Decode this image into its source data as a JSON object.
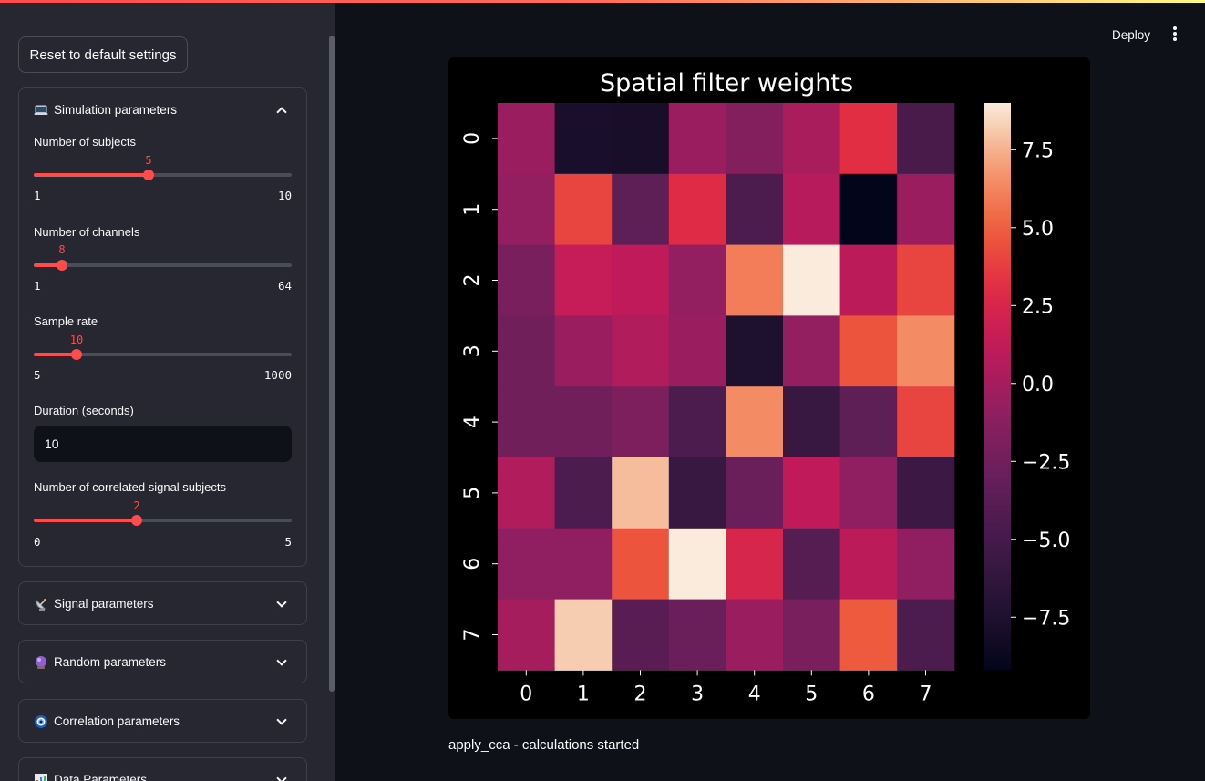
{
  "header": {
    "deploy_label": "Deploy"
  },
  "sidebar": {
    "reset_label": "Reset to default settings",
    "sections": [
      {
        "icon": "laptop-icon",
        "label": "Simulation parameters",
        "expanded": true
      },
      {
        "icon": "satellite-dish-icon",
        "label": "Signal parameters",
        "expanded": false
      },
      {
        "icon": "crystal-ball-icon",
        "label": "Random parameters",
        "expanded": false
      },
      {
        "icon": "nazar-amulet-icon",
        "label": "Correlation parameters",
        "expanded": false
      },
      {
        "icon": "bar-chart-icon",
        "label": "Data Parameters",
        "expanded": false
      }
    ],
    "simulation": {
      "subjects": {
        "label": "Number of subjects",
        "value": 5,
        "min": 1,
        "max": 10
      },
      "channels": {
        "label": "Number of channels",
        "value": 8,
        "min": 1,
        "max": 64
      },
      "sample_rate": {
        "label": "Sample rate",
        "value": 10,
        "min": 5,
        "max": 1000
      },
      "duration": {
        "label": "Duration (seconds)",
        "value": "10"
      },
      "correlated": {
        "label": "Number of correlated signal subjects",
        "value": 2,
        "min": 0,
        "max": 5
      }
    }
  },
  "main": {
    "status": "apply_cca - calculations started"
  },
  "chart_data": {
    "type": "heatmap",
    "title": "Spatial filter weights",
    "x_labels": [
      "0",
      "1",
      "2",
      "3",
      "4",
      "5",
      "6",
      "7"
    ],
    "y_labels": [
      "0",
      "1",
      "2",
      "3",
      "4",
      "5",
      "6",
      "7"
    ],
    "colorbar_ticks": [
      7.5,
      5.0,
      2.5,
      0.0,
      -2.5,
      -5.0,
      -7.5
    ],
    "colorbar_tick_labels": [
      "7.5",
      "5.0",
      "2.5",
      "0.0",
      "−2.5",
      "−5.0",
      "−7.5"
    ],
    "vmin": -9.2,
    "vmax": 9.0,
    "colormap": "rocket",
    "values": [
      [
        -0.5,
        -7.8,
        -7.9,
        -0.5,
        -1.5,
        0.2,
        3.2,
        -4.8
      ],
      [
        -0.8,
        4.0,
        -3.5,
        3.0,
        -4.5,
        0.8,
        -9.2,
        -0.5
      ],
      [
        -2.0,
        1.5,
        1.2,
        -0.8,
        6.0,
        9.0,
        1.0,
        4.0
      ],
      [
        -2.5,
        -0.5,
        0.5,
        -0.5,
        -7.5,
        -0.8,
        4.6,
        6.5
      ],
      [
        -2.5,
        -2.5,
        -1.8,
        -4.5,
        6.5,
        -5.8,
        -3.5,
        4.0
      ],
      [
        0.5,
        -4.5,
        7.8,
        -5.8,
        -2.8,
        1.2,
        -1.0,
        -5.5
      ],
      [
        -1.0,
        -1.0,
        4.6,
        9.0,
        2.5,
        -4.0,
        1.0,
        -1.0
      ],
      [
        0.0,
        8.2,
        -3.8,
        -2.8,
        -0.5,
        -2.0,
        4.8,
        -4.5
      ]
    ]
  }
}
